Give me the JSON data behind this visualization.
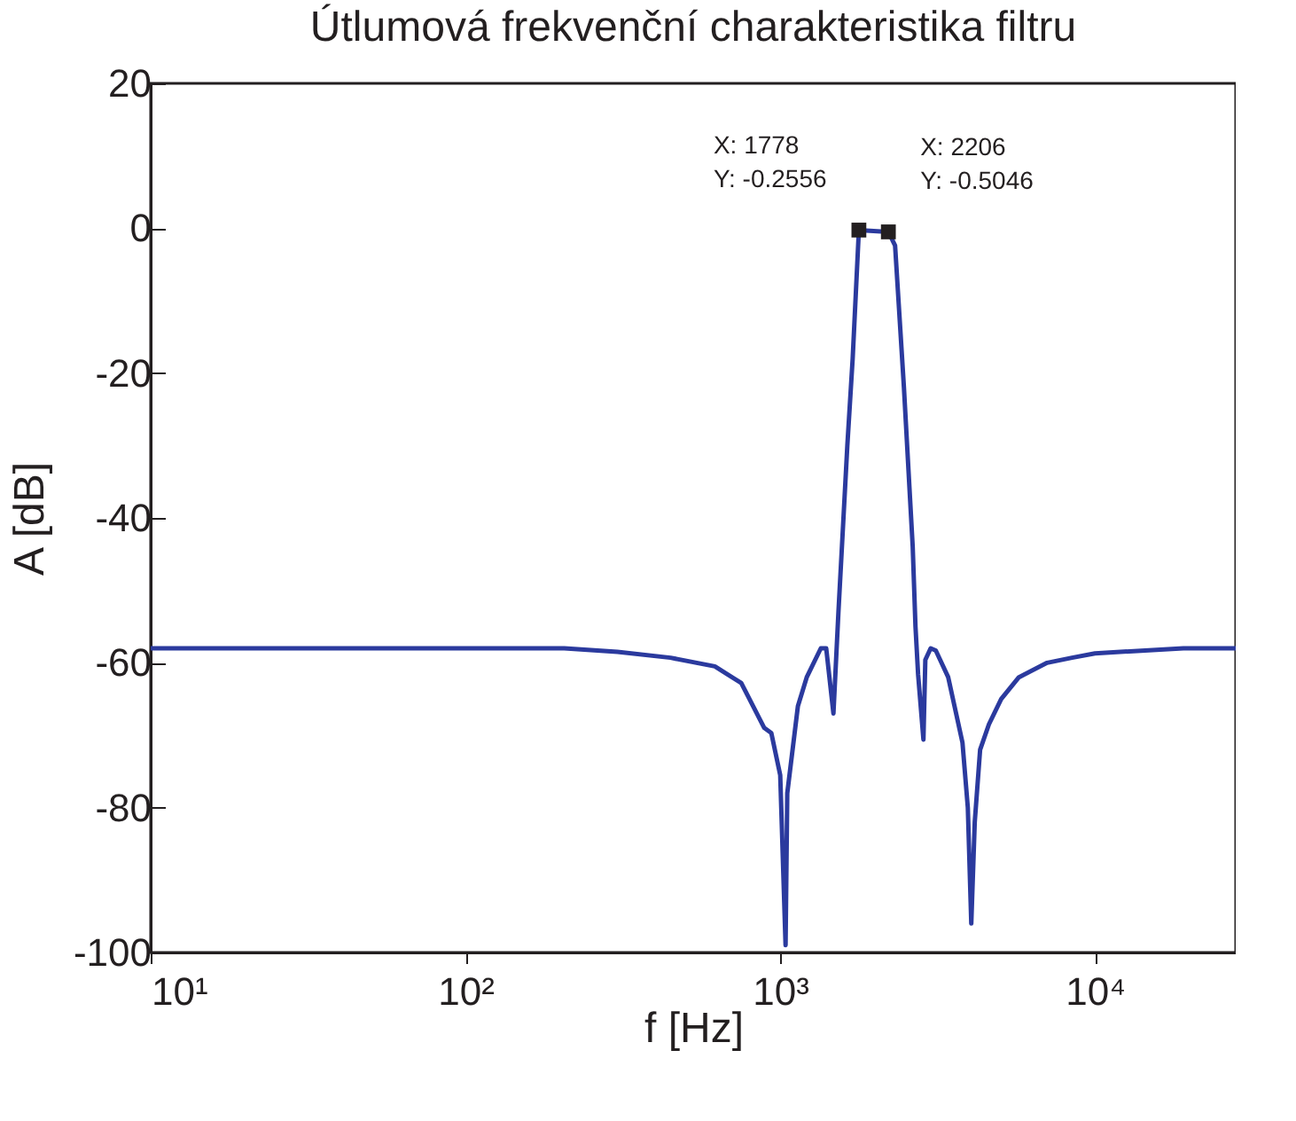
{
  "chart_data": {
    "type": "line",
    "title": "Útlumová frekvenční charakteristika filtru",
    "xlabel": "f [Hz]",
    "ylabel": "A [dB]",
    "log": "x",
    "xlim": [
      10,
      28000
    ],
    "ylim": [
      -100,
      20
    ],
    "xticks": [
      {
        "value": 10,
        "label": "10¹"
      },
      {
        "value": 100,
        "label": "10²"
      },
      {
        "value": 1000,
        "label": "10³"
      },
      {
        "value": 10000,
        "label": "10⁴"
      }
    ],
    "yticks": [
      -100,
      -80,
      -60,
      -40,
      -20,
      0,
      20
    ],
    "grid": false,
    "legend": false,
    "marker": "none",
    "line_style": "solid",
    "series": [
      {
        "color": "#2b3a9e",
        "x": [
          10,
          206,
          304,
          448,
          620,
          752,
          890,
          937,
          1000,
          1040,
          1053,
          1138,
          1214,
          1346,
          1400,
          1476,
          1531,
          1634,
          1699,
          1778,
          2206,
          2317,
          2472,
          2636,
          2690,
          2742,
          2851,
          2891,
          3006,
          3121,
          3418,
          3793,
          3945,
          4046,
          4150,
          4316,
          4603,
          5037,
          5731,
          7047,
          8454,
          10000,
          19100,
          28000
        ],
        "values": [
          -58,
          -58,
          -58.5,
          -59.3,
          -60.5,
          -62.8,
          -69,
          -69.7,
          -75.5,
          -99,
          -78,
          -66,
          -62,
          -58,
          -58,
          -67,
          -53,
          -30,
          -18,
          -0.2556,
          -0.5046,
          -2.4,
          -22,
          -44,
          -55,
          -61.6,
          -70.6,
          -59.6,
          -58,
          -58.3,
          -62,
          -71,
          -80,
          -96,
          -82,
          -72,
          -68.5,
          -65,
          -62,
          -60,
          -59.3,
          -58.7,
          -58,
          -58
        ]
      }
    ],
    "annotations": [
      {
        "text": "X: 1778\nY: -0.2556",
        "x": 1778,
        "y": -0.2556
      },
      {
        "text": "X: 2206\nY: -0.5046",
        "x": 2206,
        "y": -0.5046
      }
    ]
  }
}
